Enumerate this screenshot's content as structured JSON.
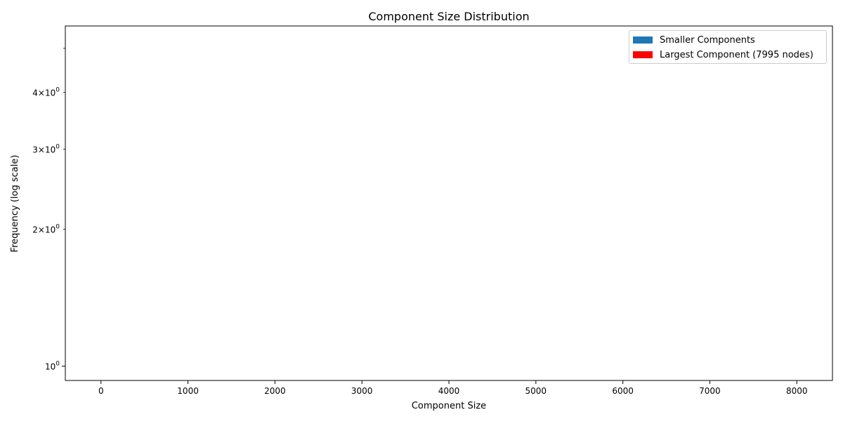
{
  "chart_data": {
    "type": "bar",
    "title": "Component Size Distribution",
    "xlabel": "Component Size",
    "ylabel": "Frequency (log scale)",
    "y_scale": "log",
    "xlim": [
      -410,
      8410
    ],
    "ylim": [
      0.93,
      5.6
    ],
    "x_ticks": [
      {
        "value": 0,
        "label": "0"
      },
      {
        "value": 1000,
        "label": "1000"
      },
      {
        "value": 2000,
        "label": "2000"
      },
      {
        "value": 3000,
        "label": "3000"
      },
      {
        "value": 4000,
        "label": "4000"
      },
      {
        "value": 5000,
        "label": "5000"
      },
      {
        "value": 6000,
        "label": "6000"
      },
      {
        "value": 7000,
        "label": "7000"
      },
      {
        "value": 8000,
        "label": "8000"
      }
    ],
    "y_major_ticks": [
      {
        "value": 1,
        "base": "10",
        "exp": "0"
      }
    ],
    "y_minor_ticks": [
      {
        "value": 2,
        "coef": "2",
        "base": "10",
        "exp": "0"
      },
      {
        "value": 3,
        "coef": "3",
        "base": "10",
        "exp": "0"
      },
      {
        "value": 4,
        "coef": "4",
        "base": "10",
        "exp": "0"
      },
      {
        "value": 5,
        "coef": "",
        "base": "",
        "exp": ""
      }
    ],
    "series": [
      {
        "name": "Smaller Components",
        "color": "#1f77b4",
        "values": []
      },
      {
        "name": "Largest Component (7995 nodes)",
        "color": "#ff0000",
        "values": []
      }
    ],
    "grid": false,
    "legend_position": "top-right"
  }
}
